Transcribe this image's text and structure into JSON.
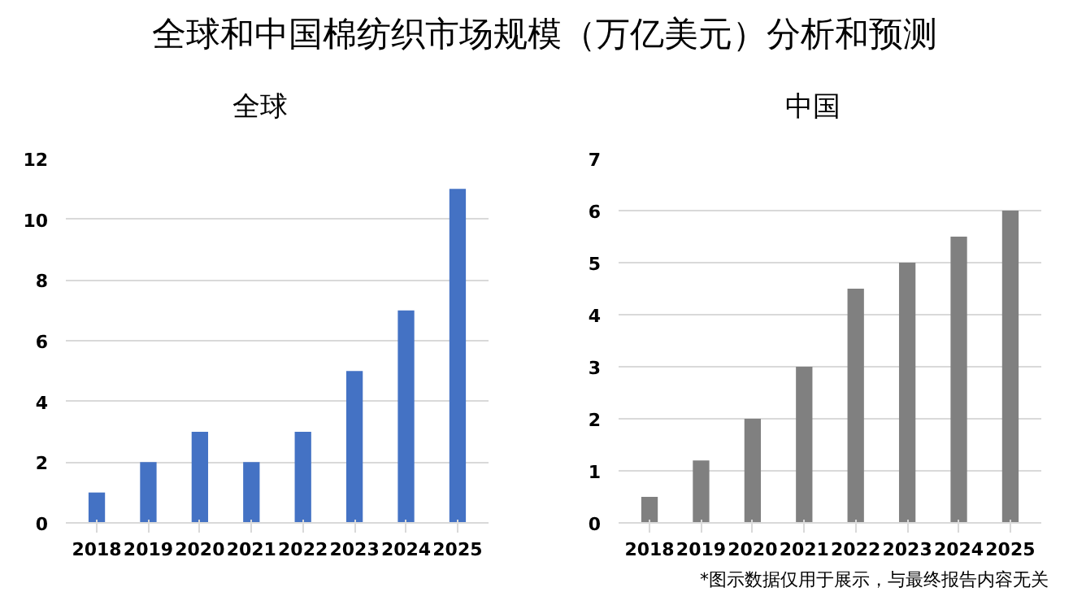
{
  "chart_data": [
    {
      "type": "bar",
      "title": "全球和中国棉纺织市场规模（万亿美元）分析和预测",
      "subtitle": "全球",
      "categories": [
        "2018",
        "2019",
        "2020",
        "2021",
        "2022",
        "2023",
        "2024",
        "2025"
      ],
      "values": [
        1,
        2,
        3,
        2,
        3,
        5,
        7,
        11
      ],
      "color": "#4472c4",
      "ylim": [
        0,
        12
      ],
      "yticks": [
        0,
        2,
        4,
        6,
        8,
        10,
        12
      ],
      "grid": "y",
      "legend": false
    },
    {
      "type": "bar",
      "subtitle": "中国",
      "categories": [
        "2018",
        "2019",
        "2020",
        "2021",
        "2022",
        "2023",
        "2024",
        "2025"
      ],
      "values": [
        0.5,
        1.2,
        2,
        3,
        4.5,
        5,
        5.5,
        6
      ],
      "color": "#808080",
      "ylim": [
        0,
        7
      ],
      "yticks": [
        0,
        1,
        2,
        3,
        4,
        5,
        6,
        7
      ],
      "grid": "y",
      "legend": false,
      "annotations": [
        "*图示数据仅用于展示，与最终报告内容无关"
      ]
    }
  ]
}
